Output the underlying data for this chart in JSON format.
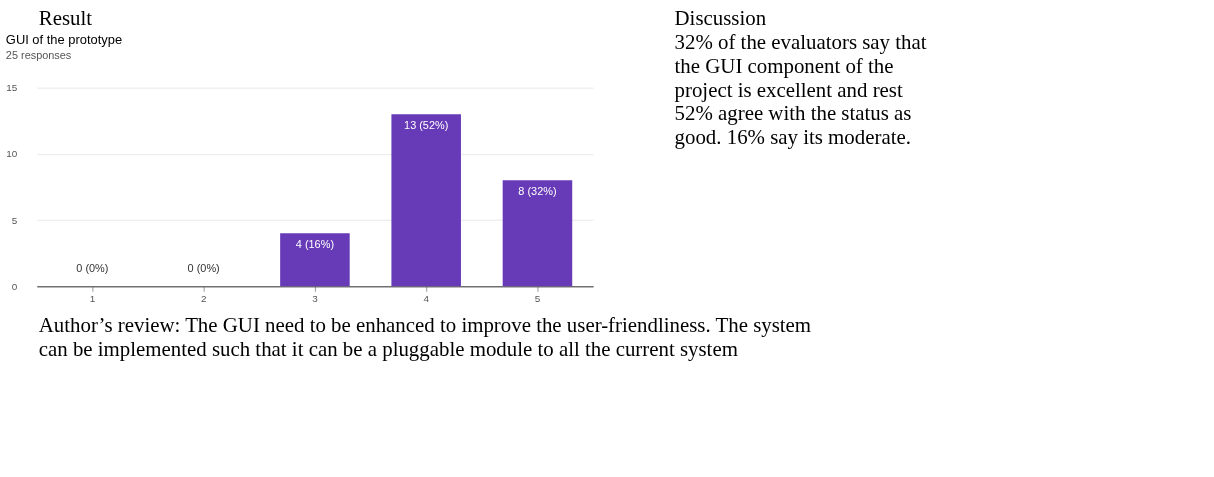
{
  "chart_data": {
    "type": "bar",
    "title": "GUI of the prototype",
    "subtitle": "25 responses",
    "categories": [
      "1",
      "2",
      "3",
      "4",
      "5"
    ],
    "values": [
      0,
      0,
      4,
      13,
      8
    ],
    "color": "#673ab7",
    "value_labels": [
      "0 (0%)",
      "0 (0%)",
      "4 (16%)",
      "13 (52%)",
      "8 (32%)"
    ],
    "ylim": [
      0,
      15
    ],
    "yticks": [
      0,
      5,
      10,
      15
    ],
    "grid": "y",
    "annotations": [
      "Result",
      "Discussion",
      "32% of the evaluators say that the GUI component of the project is excellent and rest 52% agree with the status as good. 16% say its moderate.",
      "Author’s review: The GUI need to be enhanced to improve the user-friendliness. The system can be implemented such that it can be a pluggable module to all the current system"
    ]
  }
}
